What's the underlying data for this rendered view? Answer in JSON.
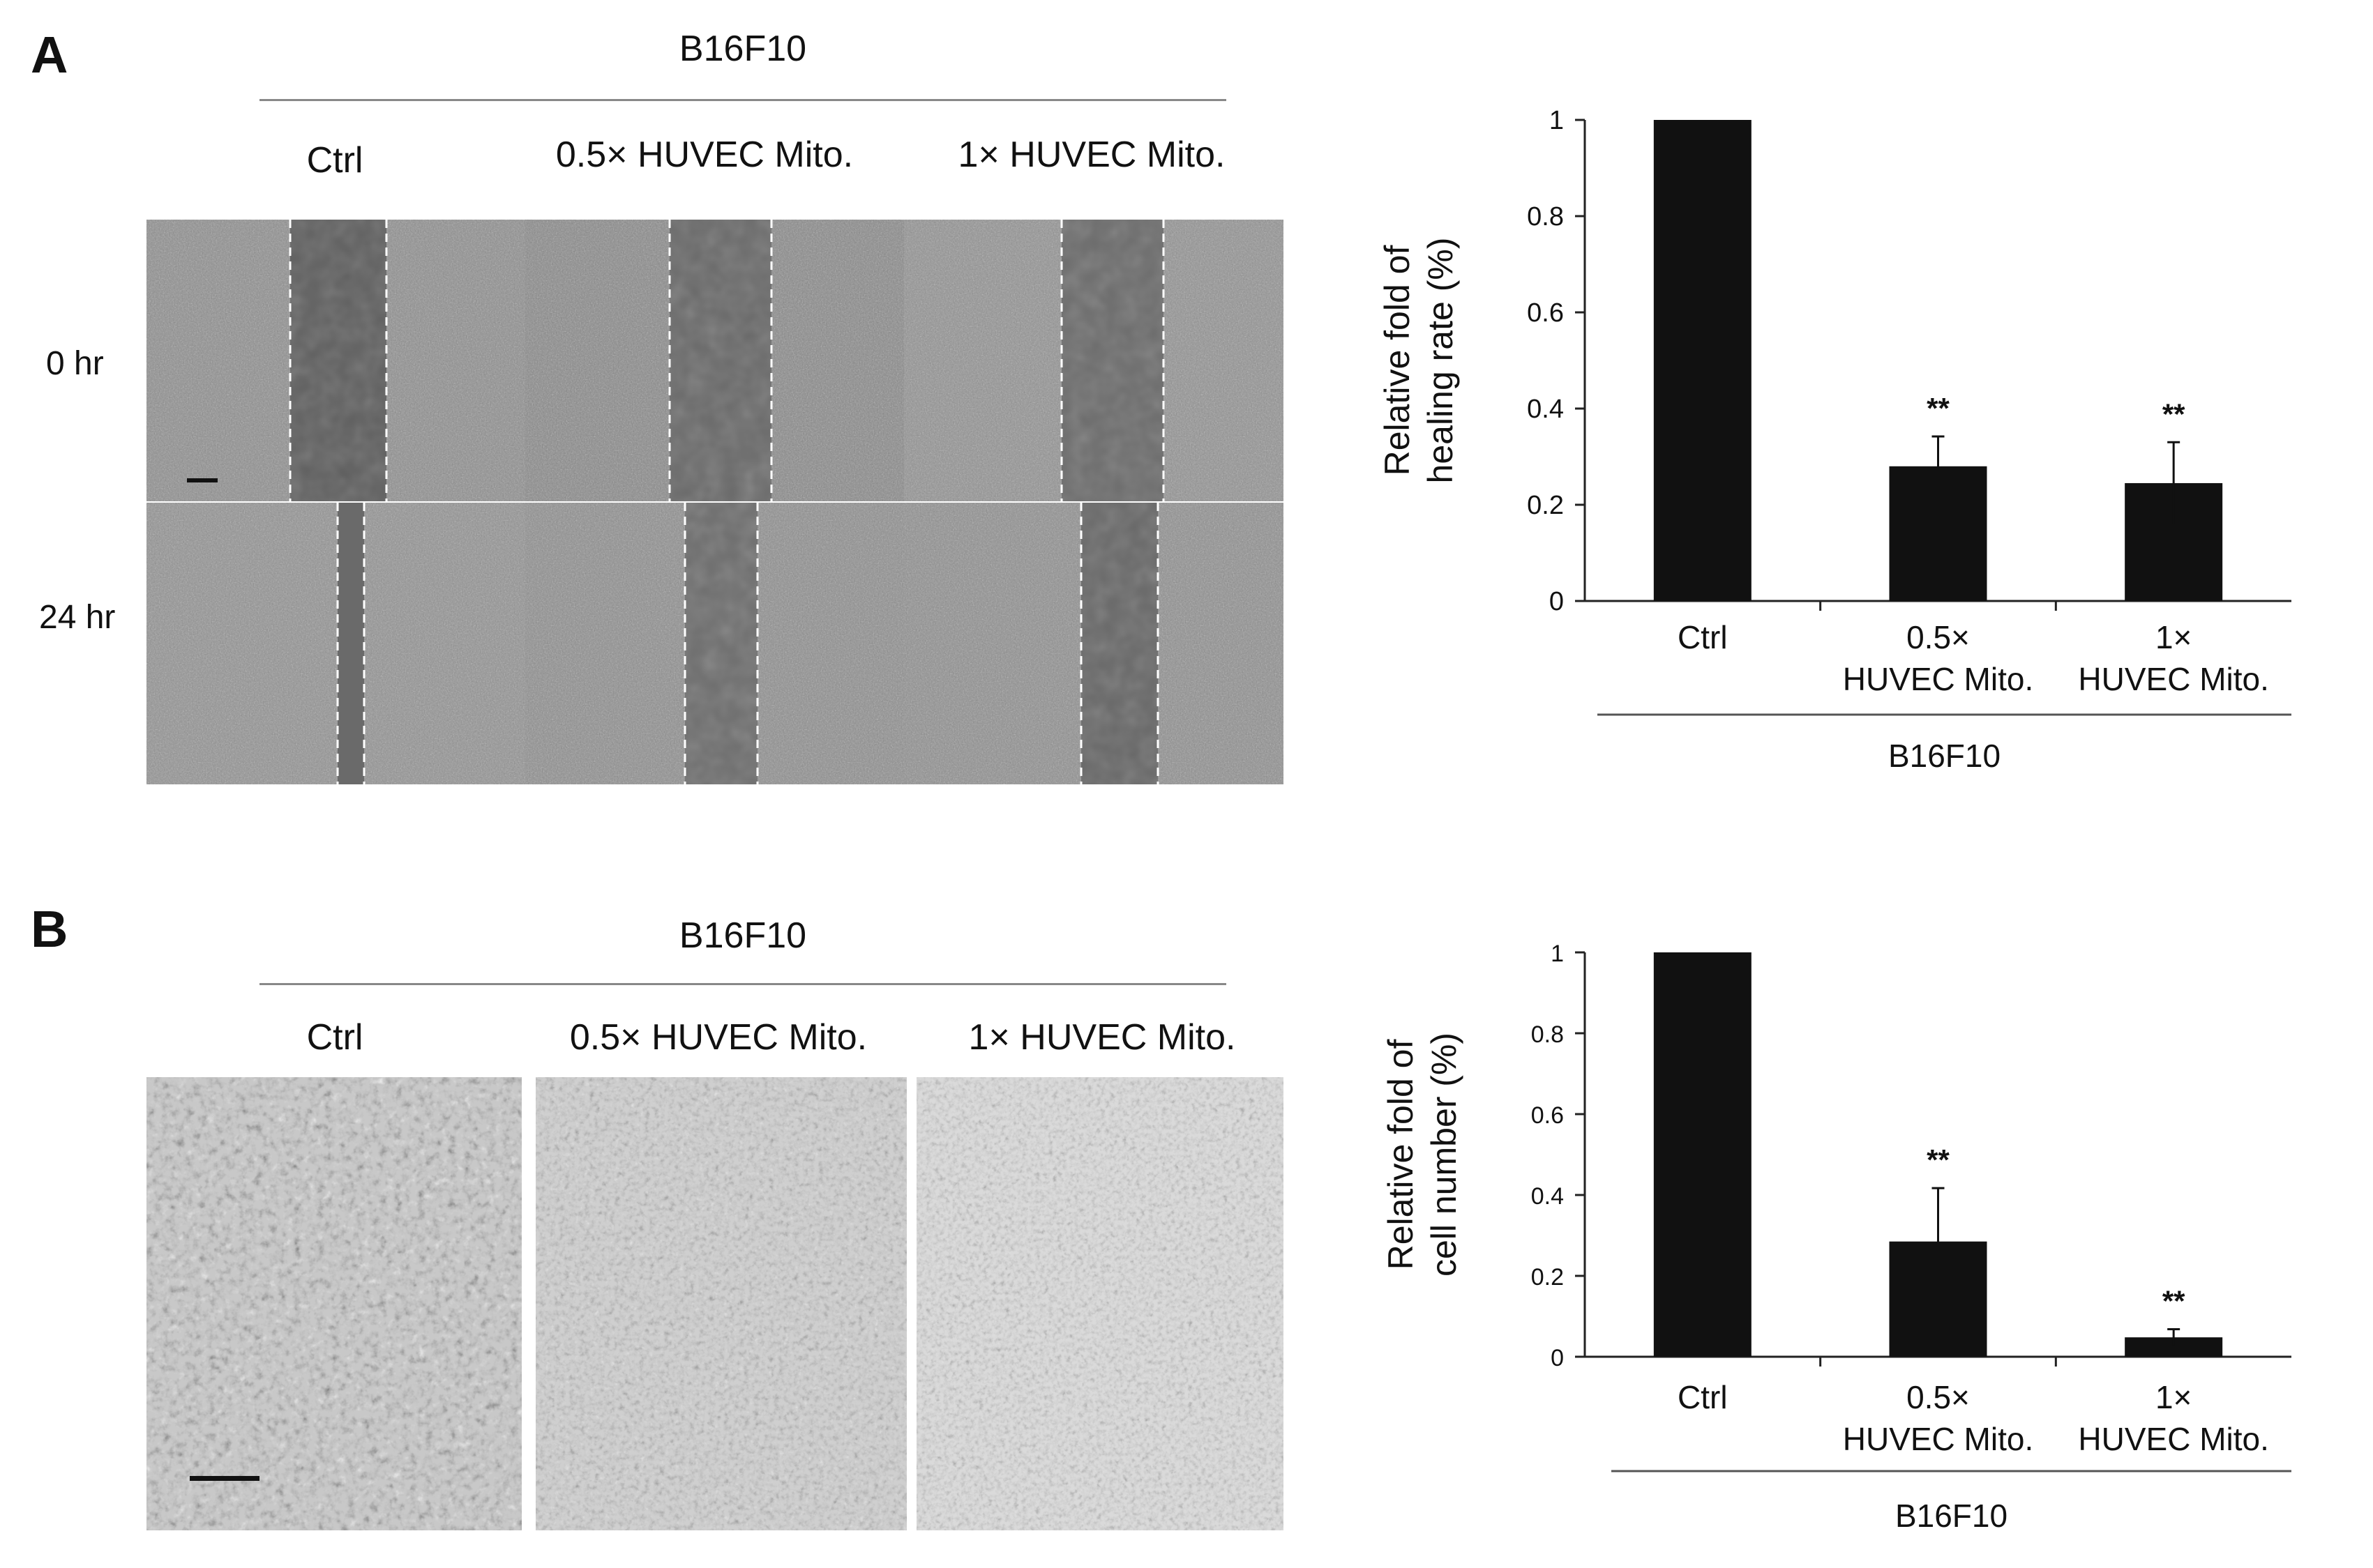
{
  "panel_a": {
    "letter": "A",
    "group_title": "B16F10",
    "columns": [
      "Ctrl",
      "0.5× HUVEC Mito.",
      "1× HUVEC Mito."
    ],
    "rows": [
      "0 hr",
      "24 hr"
    ]
  },
  "panel_b": {
    "letter": "B",
    "group_title": "B16F10",
    "columns": [
      "Ctrl",
      "0.5× HUVEC Mito.",
      "1× HUVEC Mito."
    ]
  },
  "chart_data": [
    {
      "type": "bar",
      "categories": [
        [
          "Ctrl"
        ],
        [
          "0.5×",
          "HUVEC Mito."
        ],
        [
          "1×",
          "HUVEC Mito."
        ]
      ],
      "values": [
        1.0,
        0.28,
        0.245
      ],
      "errors": [
        0,
        0.062,
        0.085
      ],
      "annotations": [
        "",
        "**",
        "**"
      ],
      "ylabel": [
        "Relative fold of",
        "healing rate (%)"
      ],
      "ylim": [
        0,
        1
      ],
      "yticks": [
        "0",
        "0.2",
        "0.4",
        "0.6",
        "0.8",
        "1"
      ],
      "group_label": "B16F10",
      "bar_color": "#111111",
      "grid": false,
      "legend": "none"
    },
    {
      "type": "bar",
      "categories": [
        [
          "Ctrl"
        ],
        [
          "0.5×",
          "HUVEC Mito."
        ],
        [
          "1×",
          "HUVEC Mito."
        ]
      ],
      "values": [
        1.0,
        0.285,
        0.048
      ],
      "errors": [
        0,
        0.132,
        0.02
      ],
      "annotations": [
        "",
        "**",
        "**"
      ],
      "ylabel": [
        "Relative fold of",
        "cell number (%)"
      ],
      "ylim": [
        0,
        1
      ],
      "yticks": [
        "0",
        "0.2",
        "0.4",
        "0.6",
        "0.8",
        "1"
      ],
      "group_label": "B16F10",
      "bar_color": "#111111",
      "grid": false,
      "legend": "none"
    }
  ]
}
